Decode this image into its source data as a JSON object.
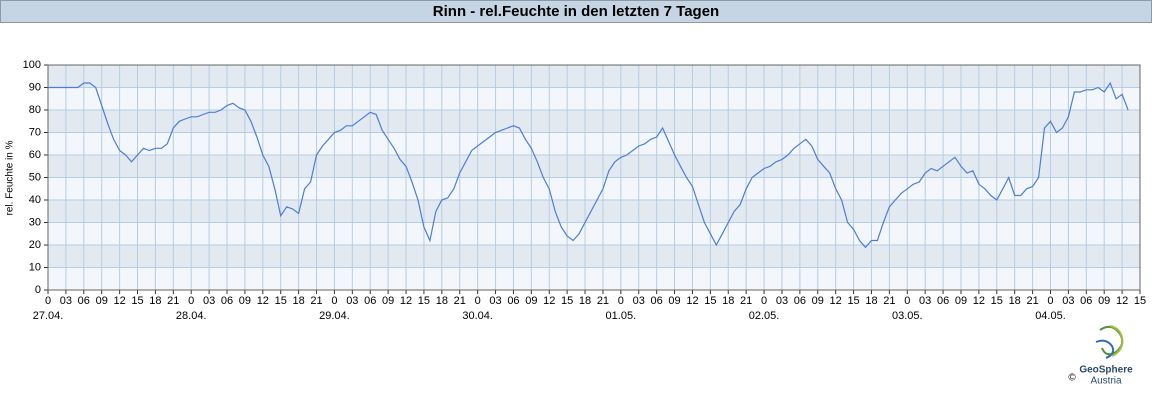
{
  "chart_data": {
    "type": "line",
    "title": "Rinn - rel.Feuchte in den letzten 7 Tagen",
    "y_label": "rel. Feuchte in %",
    "x": [
      0,
      1,
      2,
      3,
      4,
      5,
      6,
      7,
      8,
      9,
      10,
      11,
      12,
      13,
      14,
      15,
      16,
      17,
      18,
      19,
      20,
      21,
      22,
      23,
      24,
      25,
      26,
      27,
      28,
      29,
      30,
      31,
      32,
      33,
      34,
      35,
      36,
      37,
      38,
      39,
      40,
      41,
      42,
      43,
      44,
      45,
      46,
      47,
      48,
      49,
      50,
      51,
      52,
      53,
      54,
      55,
      56,
      57,
      58,
      59,
      60,
      61,
      62,
      63,
      64,
      65,
      66,
      67,
      68,
      69,
      70,
      71,
      72,
      73,
      74,
      75,
      76,
      77,
      78,
      79,
      80,
      81,
      82,
      83,
      84,
      85,
      86,
      87,
      88,
      89,
      90,
      91,
      92,
      93,
      94,
      95,
      96,
      97,
      98,
      99,
      100,
      101,
      102,
      103,
      104,
      105,
      106,
      107,
      108,
      109,
      110,
      111,
      112,
      113,
      114,
      115,
      116,
      117,
      118,
      119,
      120,
      121,
      122,
      123,
      124,
      125,
      126,
      127,
      128,
      129,
      130,
      131,
      132,
      133,
      134,
      135,
      136,
      137,
      138,
      139,
      140,
      141,
      142,
      143,
      144,
      145,
      146,
      147,
      148,
      149,
      150,
      151,
      152,
      153,
      154,
      155,
      156,
      157,
      158,
      159,
      160,
      161,
      162,
      163,
      164,
      165,
      166,
      167,
      168,
      169,
      170,
      171,
      172,
      173,
      174,
      175,
      176,
      177,
      178,
      179,
      180,
      181
    ],
    "series": [
      {
        "name": "rel. Feuchte",
        "color": "#4a7fd6",
        "values": [
          90,
          90,
          90,
          90,
          90,
          90,
          92,
          92,
          90,
          82,
          74,
          67,
          62,
          60,
          57,
          60,
          63,
          62,
          63,
          63,
          65,
          72,
          75,
          76,
          77,
          77,
          78,
          79,
          79,
          80,
          82,
          83,
          81,
          80,
          75,
          68,
          60,
          55,
          45,
          33,
          37,
          36,
          34,
          45,
          48,
          60,
          64,
          67,
          70,
          71,
          73,
          73,
          75,
          77,
          79,
          78,
          71,
          67,
          63,
          58,
          55,
          48,
          40,
          28,
          22,
          35,
          40,
          41,
          45,
          52,
          57,
          62,
          64,
          66,
          68,
          70,
          71,
          72,
          73,
          72,
          67,
          63,
          57,
          50,
          45,
          35,
          28,
          24,
          22,
          25,
          30,
          35,
          40,
          45,
          53,
          57,
          59,
          60,
          62,
          64,
          65,
          67,
          68,
          72,
          66,
          60,
          55,
          50,
          46,
          38,
          30,
          25,
          20,
          25,
          30,
          35,
          38,
          45,
          50,
          52,
          54,
          55,
          57,
          58,
          60,
          63,
          65,
          67,
          64,
          58,
          55,
          52,
          45,
          40,
          30,
          27,
          22,
          19,
          22,
          22,
          30,
          37,
          40,
          43,
          45,
          47,
          48,
          52,
          54,
          53,
          55,
          57,
          59,
          55,
          52,
          53,
          47,
          45,
          42,
          40,
          45,
          50,
          42,
          42,
          45,
          46,
          50,
          72,
          75,
          70,
          72,
          77,
          88,
          88,
          89,
          89,
          90,
          88,
          92,
          85,
          87,
          80
        ]
      }
    ],
    "xlim": [
      0,
      183
    ],
    "xticks": [
      0,
      {
        "value": 3,
        "label": "03"
      },
      {
        "value": 6,
        "label": "06"
      },
      {
        "value": 9,
        "label": "09"
      },
      12,
      15,
      18,
      21,
      {
        "value": 24,
        "label": "0"
      },
      {
        "value": 27,
        "label": "03"
      },
      {
        "value": 30,
        "label": "06"
      },
      {
        "value": 33,
        "label": "09"
      },
      {
        "value": 36,
        "label": "12"
      },
      {
        "value": 39,
        "label": "15"
      },
      {
        "value": 42,
        "label": "18"
      },
      {
        "value": 45,
        "label": "21"
      },
      {
        "value": 48,
        "label": "0"
      },
      {
        "value": 51,
        "label": "03"
      },
      {
        "value": 54,
        "label": "06"
      },
      {
        "value": 57,
        "label": "09"
      },
      {
        "value": 60,
        "label": "12"
      },
      {
        "value": 63,
        "label": "15"
      },
      {
        "value": 66,
        "label": "18"
      },
      {
        "value": 69,
        "label": "21"
      },
      {
        "value": 72,
        "label": "0"
      },
      {
        "value": 75,
        "label": "03"
      },
      {
        "value": 78,
        "label": "06"
      },
      {
        "value": 81,
        "label": "09"
      },
      {
        "value": 84,
        "label": "12"
      },
      {
        "value": 87,
        "label": "15"
      },
      {
        "value": 90,
        "label": "18"
      },
      {
        "value": 93,
        "label": "21"
      },
      {
        "value": 96,
        "label": "0"
      },
      {
        "value": 99,
        "label": "03"
      },
      {
        "value": 102,
        "label": "06"
      },
      {
        "value": 105,
        "label": "09"
      },
      {
        "value": 108,
        "label": "12"
      },
      {
        "value": 111,
        "label": "15"
      },
      {
        "value": 114,
        "label": "18"
      },
      {
        "value": 117,
        "label": "21"
      },
      {
        "value": 120,
        "label": "0"
      },
      {
        "value": 123,
        "label": "03"
      },
      {
        "value": 126,
        "label": "06"
      },
      {
        "value": 129,
        "label": "09"
      },
      {
        "value": 132,
        "label": "12"
      },
      {
        "value": 135,
        "label": "15"
      },
      {
        "value": 138,
        "label": "18"
      },
      {
        "value": 141,
        "label": "21"
      },
      {
        "value": 144,
        "label": "0"
      },
      {
        "value": 147,
        "label": "03"
      },
      {
        "value": 150,
        "label": "06"
      },
      {
        "value": 153,
        "label": "09"
      },
      {
        "value": 156,
        "label": "12"
      },
      {
        "value": 159,
        "label": "15"
      },
      {
        "value": 162,
        "label": "18"
      },
      {
        "value": 165,
        "label": "21"
      },
      {
        "value": 168,
        "label": "0"
      },
      {
        "value": 171,
        "label": "03"
      },
      {
        "value": 174,
        "label": "06"
      },
      {
        "value": 177,
        "label": "09"
      },
      {
        "value": 180,
        "label": "12"
      },
      {
        "value": 183,
        "label": "15"
      }
    ],
    "x_date_labels": [
      {
        "value": 0,
        "label": "27.04."
      },
      {
        "value": 24,
        "label": "28.04."
      },
      {
        "value": 48,
        "label": "29.04."
      },
      {
        "value": 72,
        "label": "30.04."
      },
      {
        "value": 96,
        "label": "01.05."
      },
      {
        "value": 120,
        "label": "02.05."
      },
      {
        "value": 144,
        "label": "03.05."
      },
      {
        "value": 168,
        "label": "04.05."
      }
    ],
    "ylim": [
      0,
      100
    ],
    "yticks": [
      0,
      10,
      20,
      30,
      40,
      50,
      60,
      70,
      80,
      90,
      100
    ],
    "grid": true,
    "band_colors": [
      "#f3f6fa",
      "#e3e9f1"
    ]
  },
  "logo": {
    "name": "GeoSphere",
    "sub": "Austria",
    "copyright": "©"
  }
}
